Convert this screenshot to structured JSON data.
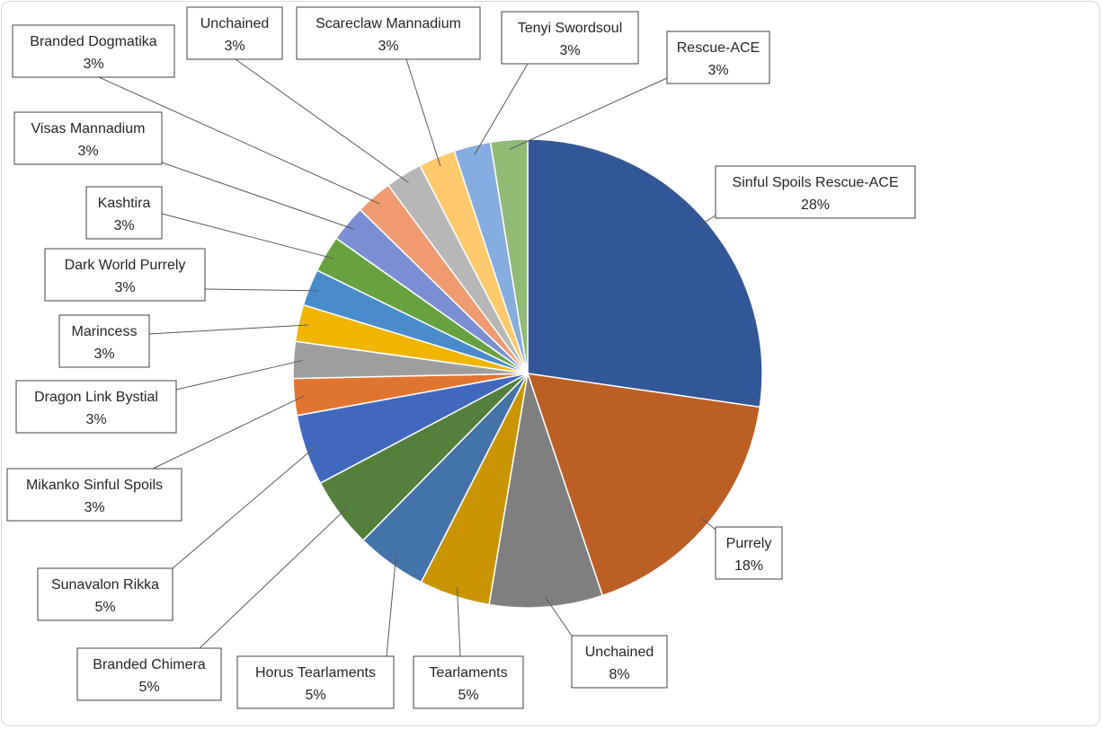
{
  "chart_data": {
    "type": "pie",
    "title": "",
    "start_angle_deg": 0,
    "direction": "clockwise",
    "slices": [
      {
        "label": "Sinful Spoils Rescue-ACE",
        "value": 28,
        "pct_text": "28%",
        "color": "#325796"
      },
      {
        "label": "Purrely",
        "value": 18,
        "pct_text": "18%",
        "color": "#bb5f24"
      },
      {
        "label": "Unchained",
        "value": 8,
        "pct_text": "8%",
        "color": "#7f7f7f"
      },
      {
        "label": "Tearlaments",
        "value": 5,
        "pct_text": "5%",
        "color": "#c99500"
      },
      {
        "label": "Horus Tearlaments",
        "value": 5,
        "pct_text": "5%",
        "color": "#4373a8"
      },
      {
        "label": "Branded Chimera",
        "value": 5,
        "pct_text": "5%",
        "color": "#53803b"
      },
      {
        "label": "Sunavalon Rikka",
        "value": 5,
        "pct_text": "5%",
        "color": "#4069be"
      },
      {
        "label": "Mikanko Sinful Spoils",
        "value": 2.6,
        "pct_text": "3%",
        "color": "#e07532"
      },
      {
        "label": "Dragon Link Bystial",
        "value": 2.6,
        "pct_text": "3%",
        "color": "#9e9e9e"
      },
      {
        "label": "Marincess",
        "value": 2.6,
        "pct_text": "3%",
        "color": "#f0b500"
      },
      {
        "label": "Dark World Purrely",
        "value": 2.6,
        "pct_text": "3%",
        "color": "#4a8bcb"
      },
      {
        "label": "Kashtira",
        "value": 2.6,
        "pct_text": "3%",
        "color": "#66a340"
      },
      {
        "label": "Visas Mannadium",
        "value": 2.6,
        "pct_text": "3%",
        "color": "#7a8fd3"
      },
      {
        "label": "Branded Dogmatika",
        "value": 2.6,
        "pct_text": "3%",
        "color": "#ef9a70"
      },
      {
        "label": "Unchained",
        "value": 2.6,
        "pct_text": "3%",
        "color": "#b7b7b7"
      },
      {
        "label": "Scareclaw Mannadium",
        "value": 2.6,
        "pct_text": "3%",
        "color": "#fdc96c"
      },
      {
        "label": "Tenyi Swordsoul",
        "value": 2.6,
        "pct_text": "3%",
        "color": "#86addf"
      },
      {
        "label": "Rescue-ACE",
        "value": 2.6,
        "pct_text": "3%",
        "color": "#8fbb74"
      }
    ],
    "legend": "none",
    "data_labels": "callout-boxes"
  }
}
